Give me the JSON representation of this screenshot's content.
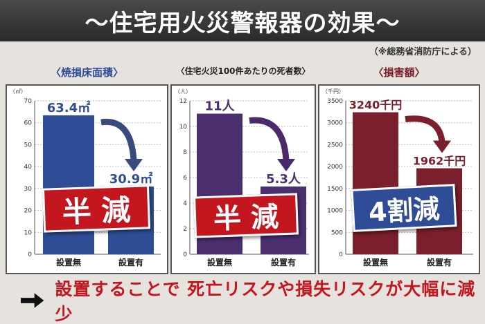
{
  "title": "〜住宅用火災警報器の効果〜",
  "source": "（※総務省消防庁による）",
  "colors": {
    "blue": "#2f4d97",
    "purple": "#4b2f6e",
    "maroon": "#7a1f2b",
    "red": "#c4161f",
    "arrow_blue": "#3b4a7c",
    "arrow_purple": "#4b2a6a",
    "arrow_maroon": "#7a1f2b"
  },
  "panels": [
    {
      "title": "〈焼損床面積〉",
      "stamp": "半 減"
    },
    {
      "title": "〈住宅火災100件あたりの死者数〉",
      "stamp": "半 減"
    },
    {
      "title": "〈損害額〉",
      "stamp": "4割減"
    }
  ],
  "chart_data": [
    {
      "type": "bar",
      "title": "〈焼損床面積〉",
      "unit": "（㎡）",
      "categories": [
        "設置無",
        "設置有"
      ],
      "values": [
        63.4,
        30.9
      ],
      "value_labels": [
        "63.4㎡",
        "30.9㎡"
      ],
      "ylim": [
        0,
        70
      ],
      "yticks": [
        0,
        10,
        20,
        30,
        40,
        50,
        60,
        70
      ],
      "grid": true
    },
    {
      "type": "bar",
      "title": "〈住宅火災100件あたりの死者数〉",
      "unit": "（人）",
      "categories": [
        "設置無",
        "設置有"
      ],
      "values": [
        11,
        5.3
      ],
      "value_labels": [
        "11人",
        "5.3人"
      ],
      "ylim": [
        0,
        12
      ],
      "yticks": [
        0,
        2,
        4,
        6,
        8,
        10,
        12
      ],
      "grid": true
    },
    {
      "type": "bar",
      "title": "〈損害額〉",
      "unit": "（千円）",
      "categories": [
        "設置無",
        "設置有"
      ],
      "values": [
        3240,
        1962
      ],
      "value_labels": [
        "3240千円",
        "1962千円"
      ],
      "ylim": [
        0,
        3500
      ],
      "yticks": [
        0,
        500,
        1000,
        1500,
        2000,
        2500,
        3000,
        3500
      ],
      "grid": true
    }
  ],
  "conclusion": "設置することで 死亡リスクや損失リスクが大幅に減少"
}
